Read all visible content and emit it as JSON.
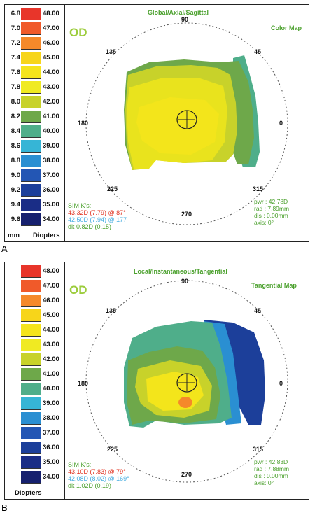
{
  "panel_a": {
    "letter": "A",
    "eye": "OD",
    "title": "Global/Axial/Sagittal",
    "map_type": "Color Map",
    "scale_mm": [
      "6.8",
      "7.0",
      "7.2",
      "7.4",
      "7.6",
      "7.8",
      "8.0",
      "8.2",
      "8.4",
      "8.6",
      "8.8",
      "9.0",
      "9.2",
      "9.4",
      "9.6"
    ],
    "scale_diopters": [
      "48.00",
      "47.00",
      "46.00",
      "45.00",
      "44.00",
      "43.00",
      "42.00",
      "41.00",
      "40.00",
      "39.00",
      "38.00",
      "37.00",
      "36.00",
      "35.00",
      "34.00"
    ],
    "footer_mm": "mm",
    "footer_diopters": "Diopters",
    "sim_k_title": "SIM K's:",
    "sim_k_line1": "43.32D (7.79) @ 87°",
    "sim_k_line2": "42.50D (7.94) @ 177",
    "sim_k_line3": "dk  0.82D (0.15)",
    "cursor": {
      "pwr": "pwr : 42.78D",
      "rad": "rad : 7.89mm",
      "dis": "dis : 0.00mm",
      "axis": "axis:  0°"
    },
    "angles": {
      "a90": "90",
      "a45": "45",
      "a135": "135",
      "a180": "180",
      "a0": "0",
      "a225": "225",
      "a270": "270",
      "a315": "315"
    }
  },
  "panel_b": {
    "letter": "B",
    "eye": "OD",
    "title": "Local/Instantaneous/Tangential",
    "map_type": "Tangential Map",
    "scale_diopters": [
      "48.00",
      "47.00",
      "46.00",
      "45.00",
      "44.00",
      "43.00",
      "42.00",
      "41.00",
      "40.00",
      "39.00",
      "38.00",
      "37.00",
      "36.00",
      "35.00",
      "34.00"
    ],
    "footer_diopters": "Diopters",
    "sim_k_title": "SIM K's:",
    "sim_k_line1": "43.10D (7.83) @ 79°",
    "sim_k_line2": "42.08D (8.02) @ 169°",
    "sim_k_line3": "dk  1.02D (0.19)",
    "cursor": {
      "pwr": "pwr : 42.83D",
      "rad": "rad : 7.88mm",
      "dis": "dis : 0.00mm",
      "axis": "axis:  0°"
    },
    "angles": {
      "a90": "90",
      "a45": "45",
      "a135": "135",
      "a180": "180",
      "a0": "0",
      "a225": "225",
      "a270": "270",
      "a315": "315"
    }
  },
  "colors": {
    "scale": [
      "#e8352a",
      "#f05a2a",
      "#f5892a",
      "#f7d51a",
      "#f5e41c",
      "#f0ea22",
      "#c8d22a",
      "#6ea84a",
      "#4fae8a",
      "#36b5d6",
      "#2a8fd2",
      "#2356b4",
      "#1c3f9a",
      "#1a2d86",
      "#16206e"
    ],
    "green_text": "#4aa02c",
    "red_text": "#e0301e",
    "blue_text": "#49aee0"
  }
}
